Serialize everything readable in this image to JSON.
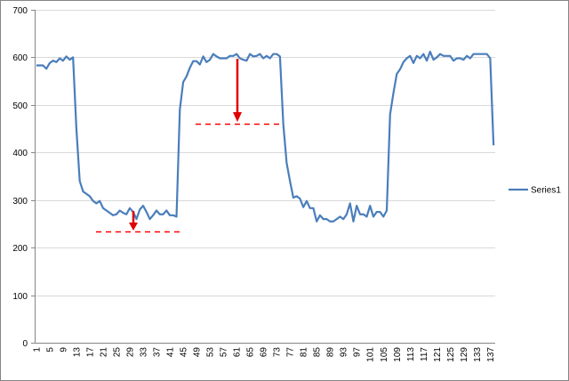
{
  "chart_data": {
    "type": "line",
    "categories": [
      1,
      null,
      null,
      null,
      5,
      null,
      null,
      null,
      9,
      null,
      null,
      null,
      13,
      null,
      null,
      null,
      17,
      null,
      null,
      null,
      21,
      null,
      null,
      null,
      25,
      null,
      null,
      null,
      29,
      null,
      null,
      null,
      33,
      null,
      null,
      null,
      37,
      null,
      null,
      null,
      41,
      null,
      null,
      null,
      45,
      null,
      null,
      null,
      49,
      null,
      null,
      null,
      53,
      null,
      null,
      null,
      57,
      null,
      null,
      null,
      61,
      null,
      null,
      null,
      65,
      null,
      null,
      null,
      69,
      null,
      null,
      null,
      73,
      null,
      null,
      null,
      77,
      null,
      null,
      null,
      81,
      null,
      null,
      null,
      85,
      null,
      null,
      null,
      89,
      null,
      null,
      null,
      93,
      null,
      null,
      null,
      97,
      null,
      null,
      null,
      101,
      null,
      null,
      null,
      105,
      null,
      null,
      null,
      109,
      null,
      null,
      null,
      113,
      null,
      null,
      null,
      117,
      null,
      null,
      null,
      121,
      null,
      null,
      null,
      125,
      null,
      null,
      null,
      129,
      null,
      null,
      null,
      133,
      null,
      null,
      null,
      137,
      null
    ],
    "series": [
      {
        "name": "Series1",
        "color": "#4a7ebb",
        "values": [
          583,
          583,
          583,
          576,
          588,
          593,
          590,
          598,
          593,
          602,
          595,
          600,
          450,
          340,
          318,
          313,
          308,
          298,
          293,
          298,
          283,
          278,
          273,
          268,
          270,
          278,
          273,
          270,
          283,
          275,
          260,
          280,
          288,
          275,
          260,
          268,
          278,
          270,
          270,
          278,
          268,
          268,
          265,
          490,
          548,
          560,
          578,
          592,
          592,
          585,
          602,
          590,
          595,
          607,
          602,
          598,
          598,
          598,
          603,
          603,
          607,
          598,
          595,
          593,
          607,
          602,
          603,
          607,
          598,
          603,
          598,
          607,
          607,
          602,
          460,
          378,
          340,
          305,
          308,
          303,
          285,
          298,
          283,
          283,
          255,
          268,
          260,
          260,
          255,
          255,
          260,
          265,
          260,
          270,
          293,
          255,
          288,
          270,
          270,
          265,
          288,
          265,
          275,
          275,
          265,
          278,
          480,
          525,
          565,
          575,
          590,
          598,
          603,
          588,
          603,
          598,
          607,
          593,
          612,
          595,
          600,
          607,
          603,
          603,
          603,
          593,
          598,
          598,
          595,
          603,
          598,
          607,
          607,
          607,
          607,
          607,
          598,
          415
        ]
      }
    ],
    "ylim": [
      0,
      700
    ],
    "yticks": [
      0,
      100,
      200,
      300,
      400,
      500,
      600,
      700
    ],
    "grid": true,
    "legend": "right"
  }
}
